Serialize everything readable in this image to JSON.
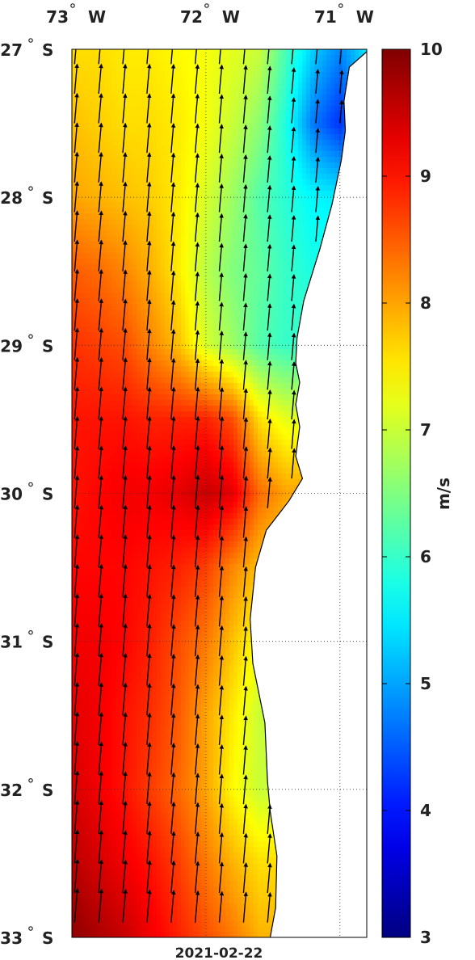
{
  "map": {
    "date": "2021-02-22",
    "variable": "wind speed",
    "projection": "lat-lon",
    "extent": {
      "lon_min": -73.0,
      "lon_max": -70.8,
      "lat_min": -33.0,
      "lat_max": -27.0
    },
    "lon_ticks": [
      {
        "lon": -73,
        "deg": "73",
        "hemi": "W"
      },
      {
        "lon": -72,
        "deg": "72",
        "hemi": "W"
      },
      {
        "lon": -71,
        "deg": "71",
        "hemi": "W"
      }
    ],
    "lat_ticks": [
      {
        "lat": -27,
        "deg": "27",
        "hemi": "S"
      },
      {
        "lat": -28,
        "deg": "28",
        "hemi": "S"
      },
      {
        "lat": -29,
        "deg": "29",
        "hemi": "S"
      },
      {
        "lat": -30,
        "deg": "30",
        "hemi": "S"
      },
      {
        "lat": -31,
        "deg": "31",
        "hemi": "S"
      },
      {
        "lat": -32,
        "deg": "32",
        "hemi": "S"
      },
      {
        "lat": -33,
        "deg": "33",
        "hemi": "S"
      }
    ],
    "colorbar": {
      "min": 3,
      "max": 10,
      "ticks": [
        3,
        4,
        5,
        6,
        7,
        8,
        9,
        10
      ],
      "unit": "m/s",
      "colormap": "jet"
    },
    "land_color": "#ffffff",
    "coastline": [
      [
        -70.78,
        -27.0
      ],
      [
        -70.93,
        -27.12
      ],
      [
        -70.97,
        -27.35
      ],
      [
        -70.96,
        -27.55
      ],
      [
        -70.99,
        -27.75
      ],
      [
        -71.06,
        -28.05
      ],
      [
        -71.15,
        -28.35
      ],
      [
        -71.27,
        -28.7
      ],
      [
        -71.32,
        -28.95
      ],
      [
        -71.33,
        -29.12
      ],
      [
        -71.3,
        -29.25
      ],
      [
        -71.33,
        -29.4
      ],
      [
        -71.3,
        -29.55
      ],
      [
        -71.33,
        -29.75
      ],
      [
        -71.28,
        -29.9
      ],
      [
        -71.38,
        -30.05
      ],
      [
        -71.55,
        -30.25
      ],
      [
        -71.63,
        -30.5
      ],
      [
        -71.67,
        -30.85
      ],
      [
        -71.65,
        -31.15
      ],
      [
        -71.56,
        -31.55
      ],
      [
        -71.54,
        -31.95
      ],
      [
        -71.52,
        -32.15
      ],
      [
        -71.47,
        -32.45
      ],
      [
        -71.48,
        -32.8
      ],
      [
        -71.52,
        -33.0
      ]
    ],
    "wind_speed_grid": {
      "lats": [
        -27.0,
        -27.5,
        -28.0,
        -28.5,
        -29.0,
        -29.5,
        -30.0,
        -30.5,
        -31.0,
        -31.5,
        -32.0,
        -32.5,
        -33.0
      ],
      "lons": [
        -73.0,
        -72.8,
        -72.6,
        -72.4,
        -72.2,
        -72.0,
        -71.8,
        -71.6,
        -71.4,
        -71.2,
        -71.0,
        -70.8
      ],
      "values": [
        [
          7.6,
          7.6,
          7.5,
          7.5,
          7.4,
          7.3,
          7.2,
          7.0,
          6.1,
          5.3,
          4.8,
          5.5
        ],
        [
          7.8,
          7.7,
          7.6,
          7.6,
          7.5,
          7.3,
          7.0,
          6.6,
          5.8,
          4.7,
          4.2,
          5.0
        ],
        [
          8.0,
          7.9,
          7.8,
          7.7,
          7.5,
          7.1,
          6.7,
          6.2,
          5.9,
          5.6,
          5.5,
          5.8
        ],
        [
          8.5,
          8.4,
          8.2,
          7.9,
          7.5,
          6.9,
          6.5,
          6.3,
          6.0,
          5.8,
          5.8,
          5.8
        ],
        [
          8.8,
          8.7,
          8.6,
          8.2,
          7.8,
          7.1,
          6.7,
          6.2,
          6.0,
          6.0,
          6.0,
          6.0
        ],
        [
          9.0,
          9.0,
          9.0,
          8.9,
          8.9,
          8.9,
          8.6,
          7.6,
          7.2,
          7.2,
          7.2,
          7.2
        ],
        [
          9.0,
          9.1,
          9.2,
          9.2,
          9.3,
          9.5,
          9.3,
          8.4,
          8.0,
          8.0,
          8.0,
          8.0
        ],
        [
          9.1,
          9.1,
          9.1,
          9.0,
          8.9,
          8.7,
          8.2,
          7.8,
          7.6,
          7.6,
          7.6,
          7.6
        ],
        [
          9.2,
          9.2,
          9.1,
          8.9,
          8.6,
          8.3,
          7.8,
          7.3,
          7.2,
          7.2,
          7.2,
          7.2
        ],
        [
          9.3,
          9.2,
          9.0,
          8.8,
          8.5,
          8.0,
          7.5,
          7.0,
          7.0,
          7.0,
          7.0,
          7.0
        ],
        [
          9.4,
          9.2,
          9.0,
          8.7,
          8.4,
          8.0,
          7.4,
          7.0,
          7.0,
          7.0,
          7.0,
          7.0
        ],
        [
          9.6,
          9.4,
          9.2,
          9.0,
          8.7,
          8.3,
          7.9,
          7.6,
          7.6,
          7.6,
          7.6,
          7.6
        ],
        [
          9.9,
          9.7,
          9.5,
          9.2,
          8.9,
          8.6,
          8.3,
          7.9,
          7.9,
          7.9,
          7.9,
          7.9
        ]
      ]
    },
    "wind_vectors": {
      "lon_spacing": 0.18,
      "lat_spacing": 0.2,
      "lon_start": -72.98,
      "lat_start": -27.1,
      "direction": "toward north",
      "tilt_deg": 5
    }
  }
}
